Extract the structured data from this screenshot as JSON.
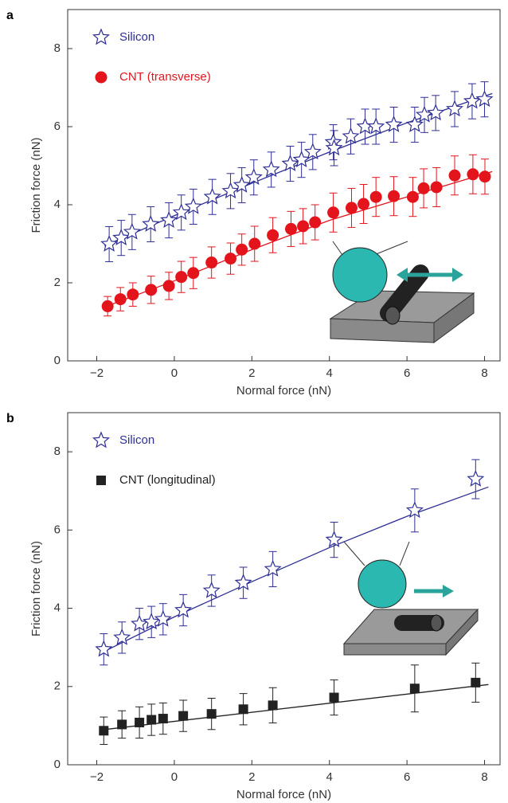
{
  "chart_data": [
    {
      "type": "scatter",
      "panel_label": "a",
      "xlabel": "Normal force (nN)",
      "ylabel": "Friction force (nN)",
      "xlim": [
        -2.75,
        8.4
      ],
      "ylim": [
        0,
        9
      ],
      "xticks": [
        {
          "value": -2,
          "label": "−2"
        },
        0,
        2,
        4,
        6,
        8
      ],
      "yticks": [
        0,
        2,
        4,
        6,
        8
      ],
      "legend": "upper left",
      "series": [
        {
          "name": "Silicon",
          "color": "#2e2e96",
          "marker": "star",
          "x": [
            -1.68,
            -1.37,
            -1.09,
            -0.61,
            -0.14,
            0.18,
            0.49,
            0.98,
            1.45,
            1.74,
            2.05,
            2.5,
            2.99,
            3.28,
            3.57,
            4.1,
            4.12,
            4.55,
            4.92,
            5.2,
            5.66,
            6.2,
            6.45,
            6.74,
            7.23,
            7.68,
            8.0
          ],
          "values": [
            2.99,
            3.15,
            3.3,
            3.5,
            3.6,
            3.8,
            3.95,
            4.2,
            4.35,
            4.5,
            4.7,
            4.9,
            5.05,
            5.15,
            5.35,
            5.6,
            5.45,
            5.75,
            6.0,
            6.0,
            6.05,
            6.05,
            6.3,
            6.35,
            6.45,
            6.65,
            6.7
          ],
          "errors": [
            0.45,
            0.45,
            0.45,
            0.45,
            0.45,
            0.45,
            0.45,
            0.45,
            0.45,
            0.45,
            0.45,
            0.45,
            0.45,
            0.45,
            0.45,
            0.45,
            0.45,
            0.45,
            0.45,
            0.45,
            0.45,
            0.45,
            0.45,
            0.45,
            0.45,
            0.45,
            0.45
          ]
        },
        {
          "name": "CNT (transverse)",
          "color": "#e3141c",
          "marker": "circle",
          "x": [
            -1.72,
            -1.39,
            -1.07,
            -0.6,
            -0.14,
            0.18,
            0.49,
            0.96,
            1.45,
            1.74,
            2.07,
            2.54,
            3.01,
            3.32,
            3.63,
            4.1,
            4.57,
            4.88,
            5.2,
            5.66,
            6.15,
            6.43,
            6.76,
            7.23,
            7.7,
            8.01
          ],
          "values": [
            1.4,
            1.58,
            1.7,
            1.82,
            1.92,
            2.15,
            2.25,
            2.52,
            2.62,
            2.85,
            3.0,
            3.22,
            3.38,
            3.45,
            3.55,
            3.8,
            3.92,
            4.02,
            4.2,
            4.22,
            4.2,
            4.42,
            4.45,
            4.75,
            4.78,
            4.72
          ],
          "errors": [
            0.25,
            0.3,
            0.3,
            0.35,
            0.35,
            0.4,
            0.4,
            0.4,
            0.4,
            0.4,
            0.45,
            0.45,
            0.45,
            0.45,
            0.45,
            0.5,
            0.5,
            0.5,
            0.5,
            0.5,
            0.5,
            0.5,
            0.5,
            0.5,
            0.5,
            0.45
          ]
        }
      ],
      "fits": [
        {
          "color": "#2e2e96",
          "x": [
            -1.8,
            0,
            2,
            4,
            6,
            8.2
          ],
          "values": [
            2.95,
            3.72,
            4.55,
            5.35,
            6.1,
            6.85
          ]
        },
        {
          "color": "#e3141c",
          "x": [
            -1.8,
            0,
            2,
            4,
            6,
            8.2
          ],
          "values": [
            1.38,
            2.05,
            2.85,
            3.6,
            4.2,
            4.85
          ]
        }
      ]
    },
    {
      "type": "scatter",
      "panel_label": "b",
      "xlabel": "Normal force (nN)",
      "ylabel": "Friction force (nN)",
      "xlim": [
        -2.75,
        8.4
      ],
      "ylim": [
        0,
        9
      ],
      "xticks": [
        {
          "value": -2,
          "label": "−2"
        },
        0,
        2,
        4,
        6,
        8
      ],
      "yticks": [
        0,
        2,
        4,
        6,
        8
      ],
      "legend": "upper left",
      "series": [
        {
          "name": "Silicon",
          "color": "#2e2e96",
          "marker": "star",
          "x": [
            -1.82,
            -1.35,
            -0.9,
            -0.59,
            -0.29,
            0.23,
            0.96,
            1.78,
            2.54,
            4.12,
            6.2,
            7.77
          ],
          "values": [
            2.95,
            3.25,
            3.6,
            3.65,
            3.72,
            3.95,
            4.45,
            4.65,
            5.0,
            5.75,
            6.5,
            7.3
          ],
          "errors": [
            0.4,
            0.4,
            0.4,
            0.4,
            0.4,
            0.4,
            0.4,
            0.4,
            0.45,
            0.45,
            0.55,
            0.5
          ]
        },
        {
          "name": "CNT (longitudinal)",
          "color": "#222222",
          "marker": "square",
          "x": [
            -1.82,
            -1.35,
            -0.9,
            -0.59,
            -0.29,
            0.23,
            0.96,
            1.78,
            2.54,
            4.12,
            6.2,
            7.77
          ],
          "values": [
            0.87,
            1.03,
            1.08,
            1.15,
            1.18,
            1.25,
            1.3,
            1.42,
            1.52,
            1.72,
            1.95,
            2.1
          ],
          "errors": [
            0.35,
            0.35,
            0.4,
            0.4,
            0.4,
            0.4,
            0.4,
            0.4,
            0.45,
            0.45,
            0.6,
            0.5
          ]
        }
      ],
      "fits": [
        {
          "color": "#2e2e96",
          "x": [
            -1.8,
            0,
            2,
            4,
            6,
            8.1
          ],
          "values": [
            2.9,
            3.78,
            4.68,
            5.55,
            6.35,
            7.1
          ]
        },
        {
          "color": "#222222",
          "x": [
            -1.8,
            8.1
          ],
          "values": [
            0.9,
            2.05
          ]
        }
      ]
    }
  ]
}
